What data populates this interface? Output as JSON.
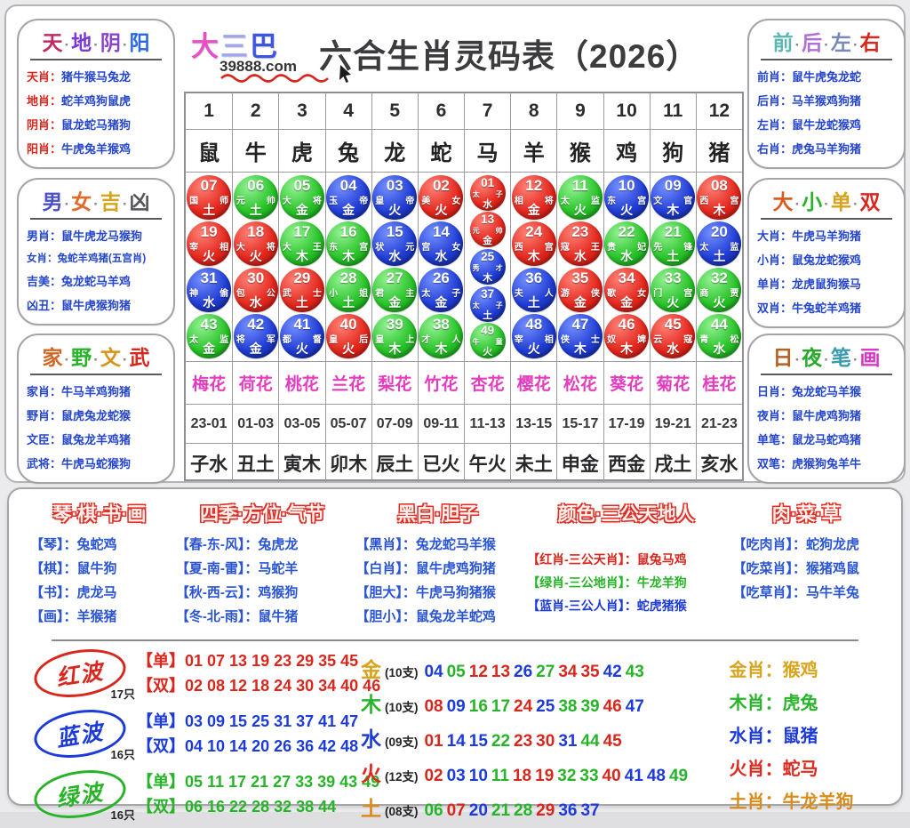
{
  "header": {
    "logo_chars": [
      {
        "t": "大",
        "c": "#e84fc4"
      },
      {
        "t": "三",
        "c": "#9fa6ec"
      },
      {
        "t": "巴",
        "c": "#3d55e0"
      }
    ],
    "site": "39888.com",
    "title": "六合生肖灵码表（2026）"
  },
  "colors": {
    "red": "#d8281e",
    "blue": "#1c3bd8",
    "green": "#28b428",
    "label_blue": "#2546cc"
  },
  "wave_sets": {
    "red": [
      "01",
      "02",
      "07",
      "08",
      "12",
      "13",
      "18",
      "19",
      "23",
      "24",
      "29",
      "30",
      "34",
      "35",
      "40",
      "45",
      "46"
    ],
    "blue": [
      "03",
      "04",
      "09",
      "10",
      "14",
      "15",
      "20",
      "25",
      "26",
      "31",
      "36",
      "37",
      "41",
      "42",
      "47",
      "48"
    ],
    "green": [
      "05",
      "06",
      "11",
      "16",
      "17",
      "21",
      "22",
      "27",
      "28",
      "32",
      "33",
      "38",
      "39",
      "43",
      "44",
      "49"
    ]
  },
  "side_boxes": {
    "left": [
      {
        "id": "tian-di-yin-yang",
        "label_color": "#d8281e",
        "title": [
          {
            "t": "天",
            "c": "#c22a62"
          },
          {
            "t": "地",
            "c": "#7a3bd0"
          },
          {
            "t": "阴",
            "c": "#8a45c8"
          },
          {
            "t": "阳",
            "c": "#2a6ae0"
          }
        ],
        "rows": [
          {
            "label": "天肖：",
            "value": "猪牛猴马兔龙"
          },
          {
            "label": "地肖：",
            "value": "蛇羊鸡狗鼠虎"
          },
          {
            "label": "阴肖：",
            "value": "鼠龙蛇马猪狗"
          },
          {
            "label": "阳肖：",
            "value": "牛虎兔羊猴鸡"
          }
        ]
      },
      {
        "id": "nan-nv-ji-xiong",
        "label_color": "#2546cc",
        "title": [
          {
            "t": "男",
            "c": "#4a50c8"
          },
          {
            "t": "女",
            "c": "#e06a28"
          },
          {
            "t": "吉",
            "c": "#d8a21a"
          },
          {
            "t": "凶",
            "c": "#55555a"
          }
        ],
        "rows": [
          {
            "label": "男肖：",
            "value": "鼠牛虎龙马猴狗"
          },
          {
            "label": "女肖：",
            "value": "兔蛇羊鸡猪(五宫肖)"
          },
          {
            "label": "吉美：",
            "value": "兔龙蛇马羊鸡"
          },
          {
            "label": "凶丑：",
            "value": "鼠牛虎猴狗猪"
          }
        ]
      },
      {
        "id": "jia-ye-wen-wu",
        "label_color": "#2546cc",
        "title": [
          {
            "t": "家",
            "c": "#d06828"
          },
          {
            "t": "野",
            "c": "#28b428"
          },
          {
            "t": "文",
            "c": "#d8941a"
          },
          {
            "t": "武",
            "c": "#d8281e"
          }
        ],
        "rows": [
          {
            "label": "家肖：",
            "value": "牛马羊鸡狗猪"
          },
          {
            "label": "野肖：",
            "value": "鼠虎兔龙蛇猴"
          },
          {
            "label": "文臣：",
            "value": "鼠兔龙羊鸡猪"
          },
          {
            "label": "武将：",
            "value": "牛虎马蛇猴狗"
          }
        ]
      }
    ],
    "right": [
      {
        "id": "qian-hou-zuo-you",
        "label_color": "#2546cc",
        "title": [
          {
            "t": "前",
            "c": "#5ab8b0"
          },
          {
            "t": "后",
            "c": "#b070d8"
          },
          {
            "t": "左",
            "c": "#7a8ab8"
          },
          {
            "t": "右",
            "c": "#d8281e"
          }
        ],
        "rows": [
          {
            "label": "前肖：",
            "value": "鼠牛虎兔龙蛇"
          },
          {
            "label": "后肖：",
            "value": "马羊猴鸡狗猪"
          },
          {
            "label": "左肖：",
            "value": "鼠牛龙蛇猴鸡"
          },
          {
            "label": "右肖：",
            "value": "虎兔马羊狗猪"
          }
        ]
      },
      {
        "id": "da-xiao-dan-shuang",
        "label_color": "#2546cc",
        "title": [
          {
            "t": "大",
            "c": "#d85a1e"
          },
          {
            "t": "小",
            "c": "#28b428"
          },
          {
            "t": "单",
            "c": "#d8a21a"
          },
          {
            "t": "双",
            "c": "#d8281e"
          }
        ],
        "rows": [
          {
            "label": "大肖：",
            "value": "牛虎马羊狗猪"
          },
          {
            "label": "小肖：",
            "value": "鼠兔龙蛇猴鸡"
          },
          {
            "label": "单肖：",
            "value": "龙虎鼠狗猴马"
          },
          {
            "label": "双肖：",
            "value": "牛兔蛇羊鸡猪"
          }
        ]
      },
      {
        "id": "ri-ye-bi-hua",
        "label_color": "#2546cc",
        "title": [
          {
            "t": "日",
            "c": "#b8601e"
          },
          {
            "t": "夜",
            "c": "#28a828"
          },
          {
            "t": "笔",
            "c": "#3a9ab0"
          },
          {
            "t": "画",
            "c": "#d838c8"
          }
        ],
        "rows": [
          {
            "label": "日肖：",
            "value": "兔龙蛇马羊猴"
          },
          {
            "label": "夜肖：",
            "value": "鼠牛虎鸡狗猪"
          },
          {
            "label": "单笔：",
            "value": "鼠龙马蛇鸡猪"
          },
          {
            "label": "双笔：",
            "value": "虎猴狗兔羊牛"
          }
        ]
      }
    ]
  },
  "table": {
    "col_numbers": [
      "1",
      "2",
      "3",
      "4",
      "5",
      "6",
      "7",
      "8",
      "9",
      "10",
      "11",
      "12"
    ],
    "animals": [
      "鼠",
      "牛",
      "虎",
      "兔",
      "龙",
      "蛇",
      "马",
      "羊",
      "猴",
      "鸡",
      "狗",
      "猪"
    ],
    "flowers": [
      "梅花",
      "荷花",
      "桃花",
      "兰花",
      "梨花",
      "竹花",
      "杏花",
      "樱花",
      "松花",
      "葵花",
      "菊花",
      "桂花"
    ],
    "times": [
      "23-01",
      "01-03",
      "03-05",
      "05-07",
      "07-09",
      "09-11",
      "11-13",
      "13-15",
      "15-17",
      "17-19",
      "19-21",
      "21-23"
    ],
    "branches": [
      "子水",
      "丑土",
      "寅木",
      "卯木",
      "辰土",
      "已火",
      "午火",
      "未土",
      "申金",
      "西金",
      "戌土",
      "亥水"
    ],
    "columns": [
      {
        "small": false,
        "balls": [
          {
            "n": "07",
            "l": "国",
            "r": "师",
            "b": "土",
            "w": "red"
          },
          {
            "n": "19",
            "l": "宰",
            "r": "相",
            "b": "火",
            "w": "red"
          },
          {
            "n": "31",
            "l": "神",
            "r": "偷",
            "b": "水",
            "w": "blue"
          },
          {
            "n": "43",
            "l": "太",
            "r": "监",
            "b": "金",
            "w": "green"
          }
        ]
      },
      {
        "small": false,
        "balls": [
          {
            "n": "06",
            "l": "元",
            "r": "帅",
            "b": "土",
            "w": "green"
          },
          {
            "n": "18",
            "l": "大",
            "r": "将",
            "b": "火",
            "w": "red"
          },
          {
            "n": "30",
            "l": "包",
            "r": "公",
            "b": "水",
            "w": "red"
          },
          {
            "n": "42",
            "l": "将",
            "r": "军",
            "b": "金",
            "w": "blue"
          }
        ]
      },
      {
        "small": false,
        "balls": [
          {
            "n": "05",
            "l": "大",
            "r": "将",
            "b": "金",
            "w": "green"
          },
          {
            "n": "17",
            "l": "大",
            "r": "王",
            "b": "木",
            "w": "green"
          },
          {
            "n": "29",
            "l": "武",
            "r": "士",
            "b": "土",
            "w": "red"
          },
          {
            "n": "41",
            "l": "都",
            "r": "督",
            "b": "火",
            "w": "blue"
          }
        ]
      },
      {
        "small": false,
        "balls": [
          {
            "n": "04",
            "l": "玉",
            "r": "帝",
            "b": "金",
            "w": "blue"
          },
          {
            "n": "16",
            "l": "东",
            "r": "宫",
            "b": "木",
            "w": "green"
          },
          {
            "n": "28",
            "l": "小",
            "r": "姐",
            "b": "土",
            "w": "green"
          },
          {
            "n": "40",
            "l": "皇",
            "r": "后",
            "b": "火",
            "w": "red"
          }
        ]
      },
      {
        "small": false,
        "balls": [
          {
            "n": "03",
            "l": "皇",
            "r": "帝",
            "b": "火",
            "w": "blue"
          },
          {
            "n": "15",
            "l": "状",
            "r": "元",
            "b": "水",
            "w": "blue"
          },
          {
            "n": "27",
            "l": "君",
            "r": "主",
            "b": "金",
            "w": "green"
          },
          {
            "n": "39",
            "l": "皇",
            "r": "上",
            "b": "木",
            "w": "green"
          }
        ]
      },
      {
        "small": false,
        "balls": [
          {
            "n": "02",
            "l": "美",
            "r": "女",
            "b": "火",
            "w": "red"
          },
          {
            "n": "14",
            "l": "宫",
            "r": "女",
            "b": "水",
            "w": "blue"
          },
          {
            "n": "26",
            "l": "太",
            "r": "子",
            "b": "金",
            "w": "blue"
          },
          {
            "n": "38",
            "l": "才",
            "r": "人",
            "b": "木",
            "w": "green"
          }
        ]
      },
      {
        "small": true,
        "balls": [
          {
            "n": "01",
            "l": "太",
            "r": "子",
            "b": "水",
            "w": "red"
          },
          {
            "n": "13",
            "l": "元",
            "r": "帅",
            "b": "金",
            "w": "red"
          },
          {
            "n": "25",
            "l": "秀",
            "r": "才",
            "b": "木",
            "w": "blue"
          },
          {
            "n": "37",
            "l": "太",
            "r": "子",
            "b": "土",
            "w": "blue"
          },
          {
            "n": "49",
            "l": "牛",
            "r": "童",
            "b": "火",
            "w": "green"
          }
        ]
      },
      {
        "small": false,
        "balls": [
          {
            "n": "12",
            "l": "相",
            "r": "将",
            "b": "金",
            "w": "red"
          },
          {
            "n": "24",
            "l": "西",
            "r": "宫",
            "b": "木",
            "w": "red"
          },
          {
            "n": "36",
            "l": "夫",
            "r": "人",
            "b": "土",
            "w": "blue"
          },
          {
            "n": "48",
            "l": "宰",
            "r": "相",
            "b": "火",
            "w": "blue"
          }
        ]
      },
      {
        "small": false,
        "balls": [
          {
            "n": "11",
            "l": "太",
            "r": "监",
            "b": "火",
            "w": "green"
          },
          {
            "n": "23",
            "l": "寇",
            "r": "王",
            "b": "水",
            "w": "red"
          },
          {
            "n": "35",
            "l": "游",
            "r": "侠",
            "b": "金",
            "w": "red"
          },
          {
            "n": "47",
            "l": "侠",
            "r": "士",
            "b": "木",
            "w": "blue"
          }
        ]
      },
      {
        "small": false,
        "balls": [
          {
            "n": "10",
            "l": "东",
            "r": "宫",
            "b": "火",
            "w": "blue"
          },
          {
            "n": "22",
            "l": "贵",
            "r": "妃",
            "b": "水",
            "w": "green"
          },
          {
            "n": "34",
            "l": "歌",
            "r": "女",
            "b": "金",
            "w": "red"
          },
          {
            "n": "46",
            "l": "奴",
            "r": "婢",
            "b": "木",
            "w": "red"
          }
        ]
      },
      {
        "small": false,
        "balls": [
          {
            "n": "09",
            "l": "文",
            "r": "官",
            "b": "木",
            "w": "blue"
          },
          {
            "n": "21",
            "l": "先",
            "r": "锋",
            "b": "土",
            "w": "green"
          },
          {
            "n": "33",
            "l": "门",
            "r": "宫",
            "b": "火",
            "w": "green"
          },
          {
            "n": "45",
            "l": "云",
            "r": "寇",
            "b": "水",
            "w": "red"
          }
        ]
      },
      {
        "small": false,
        "balls": [
          {
            "n": "08",
            "l": "西",
            "r": "宫",
            "b": "木",
            "w": "red"
          },
          {
            "n": "20",
            "l": "太",
            "r": "监",
            "b": "土",
            "w": "blue"
          },
          {
            "n": "32",
            "l": "商",
            "r": "贾",
            "b": "火",
            "w": "green"
          },
          {
            "n": "44",
            "l": "青",
            "r": "松",
            "b": "水",
            "w": "green"
          }
        ]
      }
    ]
  },
  "bottom_columns": [
    {
      "title": "琴·棋·书·画",
      "rows": [
        {
          "label": "【琴】：",
          "value": "兔蛇鸡"
        },
        {
          "label": "【棋】：",
          "value": "鼠牛狗"
        },
        {
          "label": "【书】：",
          "value": "虎龙马"
        },
        {
          "label": "【画】：",
          "value": "羊猴猪"
        }
      ]
    },
    {
      "title": "四季·方位·气节",
      "rows": [
        {
          "label": "【春-东-风】：",
          "value": "兔虎龙"
        },
        {
          "label": "【夏-南-雷】：",
          "value": "马蛇羊"
        },
        {
          "label": "【秋-西-云】：",
          "value": "鸡猴狗"
        },
        {
          "label": "【冬-北-雨】：",
          "value": "鼠牛猪"
        }
      ]
    },
    {
      "title": "黑白·胆子",
      "rows": [
        {
          "label": "【黑肖】：",
          "value": "兔龙蛇马羊猴"
        },
        {
          "label": "【白肖】：",
          "value": "鼠牛虎鸡狗猪"
        },
        {
          "label": "【胆大】：",
          "value": "牛虎马狗猪猴"
        },
        {
          "label": "【胆小】：",
          "value": "鼠兔龙羊蛇鸡"
        }
      ]
    },
    {
      "title": "颜色·三公天地人",
      "offset": true,
      "rows": [
        {
          "label": "【红肖-三公天肖】：",
          "value": "鼠兔马鸡",
          "color": "#d8281e"
        },
        {
          "label": "【绿肖-三公地肖】：",
          "value": "牛龙羊狗",
          "color": "#28b428"
        },
        {
          "label": "【蓝肖-三公人肖】：",
          "value": "蛇虎猪猴",
          "color": "#1c3bd8"
        }
      ]
    },
    {
      "title": "肉·菜·草",
      "rows": [
        {
          "label": "【吃肉肖】：",
          "value": "蛇狗龙虎"
        },
        {
          "label": "【吃菜肖】：",
          "value": "猴猪鸡鼠"
        },
        {
          "label": "【吃草肖】：",
          "value": "马牛羊兔"
        }
      ]
    }
  ],
  "waves": [
    {
      "name": "红波",
      "count": "17只",
      "key": "red",
      "dan": "【单】01 07 13 19 23 29 35 45",
      "shuang": "【双】02 08 12 18 24 30 34 40 46"
    },
    {
      "name": "蓝波",
      "count": "16只",
      "key": "blue",
      "dan": "【单】03 09 15 25 31 37 41 47",
      "shuang": "【双】04 10 14 20 26 36 42 48"
    },
    {
      "name": "绿波",
      "count": "16只",
      "key": "green",
      "dan": "【单】05 11 17 21 27 33 39 43 49",
      "shuang": "【双】06 16 22 28 32 38 44"
    }
  ],
  "elements": [
    {
      "char": "金",
      "color": "#d9a41b",
      "count": "(10支)",
      "numbers": [
        "04",
        "05",
        "12",
        "13",
        "26",
        "27",
        "34",
        "35",
        "42",
        "43"
      ]
    },
    {
      "char": "木",
      "color": "#29b52a",
      "count": "(10支)",
      "numbers": [
        "08",
        "09",
        "16",
        "17",
        "24",
        "25",
        "38",
        "39",
        "46",
        "47"
      ]
    },
    {
      "char": "水",
      "color": "#1c3bd8",
      "count": "(09支)",
      "numbers": [
        "01",
        "14",
        "15",
        "22",
        "23",
        "30",
        "31",
        "44",
        "45"
      ]
    },
    {
      "char": "火",
      "color": "#e0281e",
      "count": "(12支)",
      "numbers": [
        "02",
        "03",
        "10",
        "11",
        "18",
        "19",
        "32",
        "33",
        "40",
        "41",
        "48",
        "49"
      ]
    },
    {
      "char": "土",
      "color": "#d98b1b",
      "count": "(08支)",
      "numbers": [
        "06",
        "07",
        "20",
        "21",
        "28",
        "29",
        "36",
        "37"
      ]
    }
  ],
  "element_shengxiao": [
    {
      "label": "金肖：",
      "value": "猴鸡",
      "color": "#d9a41b"
    },
    {
      "label": "木肖：",
      "value": "虎兔",
      "color": "#29b52a"
    },
    {
      "label": "水肖：",
      "value": "鼠猪",
      "color": "#1c3bd8"
    },
    {
      "label": "火肖：",
      "value": "蛇马",
      "color": "#e0281e"
    },
    {
      "label": "土肖：",
      "value": "牛龙羊狗",
      "color": "#d98b1b"
    }
  ]
}
